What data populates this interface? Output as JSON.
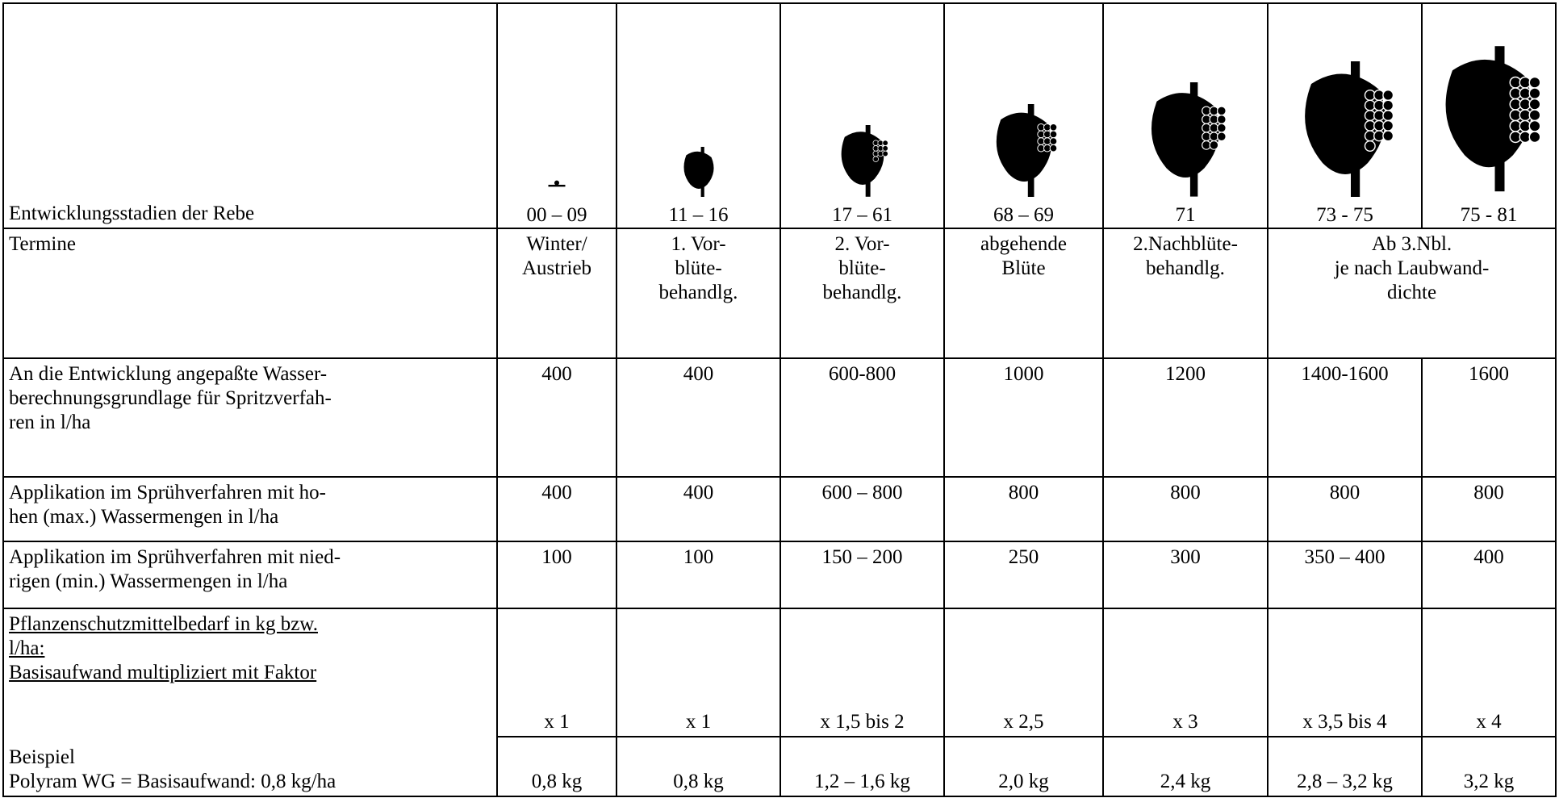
{
  "table": {
    "header": {
      "label": "Entwicklungsstadien der Rebe",
      "stages": [
        "00 – 09",
        "11 – 16",
        "17 – 61",
        "68 – 69",
        "71",
        "73 - 75",
        "75 - 81"
      ]
    },
    "termine": {
      "label": "Termine",
      "cells": [
        [
          "Winter/",
          "Austrieb"
        ],
        [
          "1. Vor-",
          "blüte-",
          "behandlg."
        ],
        [
          "2. Vor-",
          "blüte-",
          "behandlg."
        ],
        [
          "abgehende",
          "Blüte"
        ],
        [
          "2.Nachblüte-",
          "behandlg."
        ],
        [
          "Ab 3.Nbl.",
          "je nach Laubwand-",
          "dichte"
        ]
      ]
    },
    "rows": [
      {
        "label": [
          "An die Entwicklung angepaßte Wasser-",
          "berechnungsgrundlage für Spritzverfah-",
          "ren in l/ha"
        ],
        "cells": [
          "400",
          "400",
          "600-800",
          "1000",
          "1200",
          "1400-1600",
          "1600"
        ]
      },
      {
        "label": [
          "Applikation im Sprühverfahren mit ho-",
          "hen (max.) Wassermengen in l/ha"
        ],
        "cells": [
          "400",
          "400",
          "600 – 800",
          "800",
          "800",
          "800",
          "800"
        ]
      },
      {
        "label": [
          "Applikation im Sprühverfahren mit nied-",
          "rigen (min.) Wassermengen in l/ha"
        ],
        "cells": [
          "100",
          "100",
          "150 – 200",
          "250",
          "300",
          "350 – 400",
          "400"
        ]
      }
    ],
    "factor": {
      "label": [
        "Pflanzenschutzmittelbedarf in kg bzw.",
        "l/ha:",
        "Basisaufwand multipliziert mit Faktor"
      ],
      "cells": [
        "x 1",
        "x 1",
        "x 1,5 bis 2",
        "x 2,5",
        "x 3",
        "x 3,5 bis 4",
        "x 4"
      ]
    },
    "example": {
      "label": [
        "Beispiel",
        "Polyram WG = Basisaufwand: 0,8 kg/ha"
      ],
      "cells": [
        "0,8 kg",
        "0,8 kg",
        "1,2 – 1,6 kg",
        "2,0 kg",
        "2,4 kg",
        "2,8 – 3,2 kg",
        "3,2 kg"
      ]
    }
  }
}
